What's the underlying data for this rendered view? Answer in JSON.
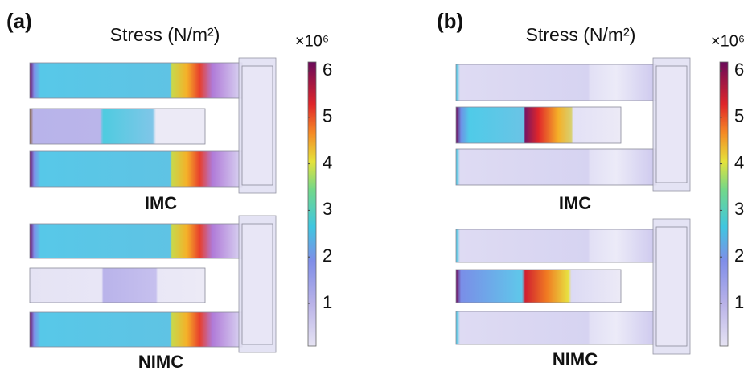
{
  "panels": [
    {
      "label": "(a)",
      "title": "Stress (N/m²)",
      "colorbar": {
        "multiplier": "×10⁶",
        "ticks": [
          1,
          2,
          3,
          4,
          5,
          6
        ]
      },
      "devices": [
        {
          "label": "IMC"
        },
        {
          "label": "NIMC"
        }
      ]
    },
    {
      "label": "(b)",
      "title": "Stress (N/m²)",
      "colorbar": {
        "multiplier": "×10⁶",
        "ticks": [
          1,
          2,
          3,
          4,
          5,
          6
        ]
      },
      "devices": [
        {
          "label": "IMC"
        },
        {
          "label": "NIMC"
        }
      ]
    }
  ]
}
